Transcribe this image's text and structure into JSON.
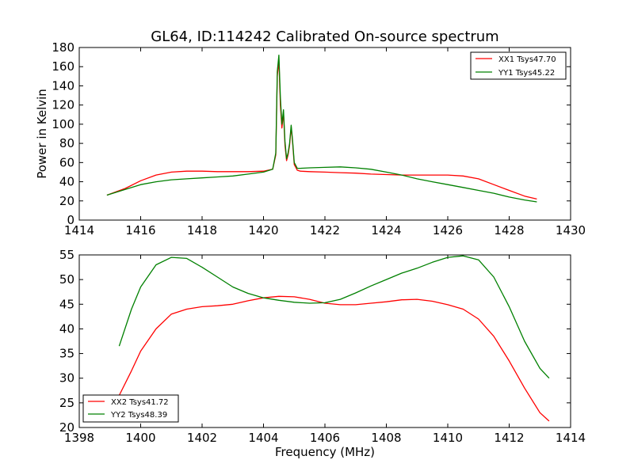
{
  "figure": {
    "title": "GL64, ID:114242 Calibrated On-source spectrum",
    "xlabel": "Frequency (MHz)"
  },
  "chart_data": [
    {
      "type": "line",
      "title": "GL64, ID:114242 Calibrated On-source spectrum",
      "xlabel": "",
      "ylabel": "Power in Kelvin",
      "xlim": [
        1414,
        1430
      ],
      "ylim": [
        0,
        180
      ],
      "x_ticks": [
        1414,
        1416,
        1418,
        1420,
        1422,
        1424,
        1426,
        1428,
        1430
      ],
      "y_ticks": [
        0,
        20,
        40,
        60,
        80,
        100,
        120,
        140,
        160,
        180
      ],
      "grid": false,
      "legend_position": "top-right",
      "series": [
        {
          "name": "XX1 Tsys47.70",
          "color": "#ff0000",
          "x": [
            1414.9,
            1415.5,
            1416.0,
            1416.5,
            1417.0,
            1417.5,
            1418.0,
            1418.5,
            1419.0,
            1419.5,
            1420.0,
            1420.3,
            1420.4,
            1420.45,
            1420.5,
            1420.55,
            1420.6,
            1420.65,
            1420.7,
            1420.75,
            1420.8,
            1420.85,
            1420.9,
            1420.95,
            1421.0,
            1421.1,
            1421.2,
            1421.5,
            1422.0,
            1422.5,
            1423.0,
            1423.5,
            1424.0,
            1424.5,
            1425.0,
            1425.5,
            1426.0,
            1426.5,
            1427.0,
            1427.5,
            1428.0,
            1428.5,
            1428.9
          ],
          "y": [
            26,
            33,
            41,
            47,
            50,
            51,
            51,
            50.5,
            50.5,
            50.5,
            51,
            53,
            68,
            150,
            167,
            120,
            96,
            112,
            78,
            62,
            68,
            78,
            97,
            80,
            58,
            52,
            51,
            50.5,
            50,
            49.5,
            49,
            48,
            47.5,
            47,
            47,
            47,
            47,
            46,
            43,
            37,
            31,
            25,
            22
          ]
        },
        {
          "name": "YY1 Tsys45.22",
          "color": "#008000",
          "x": [
            1414.9,
            1415.5,
            1416.0,
            1416.5,
            1417.0,
            1417.5,
            1418.0,
            1418.5,
            1419.0,
            1419.5,
            1420.0,
            1420.3,
            1420.4,
            1420.45,
            1420.5,
            1420.55,
            1420.6,
            1420.65,
            1420.7,
            1420.75,
            1420.8,
            1420.85,
            1420.9,
            1420.95,
            1421.0,
            1421.1,
            1421.2,
            1421.5,
            1422.0,
            1422.5,
            1423.0,
            1423.5,
            1424.0,
            1424.5,
            1425.0,
            1425.5,
            1426.0,
            1426.5,
            1427.0,
            1427.5,
            1428.0,
            1428.5,
            1428.9
          ],
          "y": [
            26,
            32,
            37,
            40,
            42,
            43,
            44,
            45,
            46,
            48,
            50,
            53,
            70,
            155,
            172,
            128,
            100,
            115,
            82,
            64,
            70,
            80,
            99,
            82,
            60,
            54,
            54,
            54.5,
            55,
            55.5,
            54.5,
            53,
            50,
            47,
            43,
            40,
            37,
            34,
            31,
            28,
            24,
            21,
            19
          ]
        }
      ]
    },
    {
      "type": "line",
      "title": "",
      "xlabel": "Frequency (MHz)",
      "ylabel": "",
      "xlim": [
        1398,
        1414
      ],
      "ylim": [
        20,
        55
      ],
      "x_ticks": [
        1398,
        1400,
        1402,
        1404,
        1406,
        1408,
        1410,
        1412,
        1414
      ],
      "y_ticks": [
        20,
        25,
        30,
        35,
        40,
        45,
        50,
        55
      ],
      "grid": false,
      "legend_position": "bottom-left",
      "series": [
        {
          "name": "XX2 Tsys41.72",
          "color": "#ff0000",
          "x": [
            1399.3,
            1399.7,
            1400.0,
            1400.5,
            1401.0,
            1401.5,
            1402.0,
            1402.5,
            1403.0,
            1403.5,
            1404.0,
            1404.5,
            1405.0,
            1405.5,
            1406.0,
            1406.5,
            1407.0,
            1407.5,
            1408.0,
            1408.5,
            1409.0,
            1409.5,
            1410.0,
            1410.5,
            1411.0,
            1411.5,
            1412.0,
            1412.5,
            1413.0,
            1413.3
          ],
          "y": [
            26.5,
            31.5,
            35.5,
            40,
            43,
            44,
            44.5,
            44.7,
            45,
            45.7,
            46.3,
            46.6,
            46.5,
            46,
            45.2,
            44.9,
            44.9,
            45.2,
            45.5,
            45.9,
            46,
            45.6,
            44.9,
            44,
            42,
            38.5,
            33.5,
            28,
            23,
            21.3
          ]
        },
        {
          "name": "YY2 Tsys48.39",
          "color": "#008000",
          "x": [
            1399.3,
            1399.7,
            1400.0,
            1400.5,
            1401.0,
            1401.5,
            1402.0,
            1402.5,
            1403.0,
            1403.5,
            1404.0,
            1404.5,
            1405.0,
            1405.5,
            1406.0,
            1406.5,
            1407.0,
            1407.5,
            1408.0,
            1408.5,
            1409.0,
            1409.5,
            1410.0,
            1410.5,
            1411.0,
            1411.5,
            1412.0,
            1412.5,
            1413.0,
            1413.3
          ],
          "y": [
            36.5,
            44,
            48.5,
            53,
            54.5,
            54.3,
            52.5,
            50.5,
            48.5,
            47.2,
            46.3,
            45.8,
            45.4,
            45.2,
            45.3,
            46,
            47.3,
            48.7,
            50,
            51.3,
            52.3,
            53.5,
            54.5,
            54.8,
            54,
            50.5,
            44.5,
            37.5,
            32,
            30
          ]
        }
      ]
    }
  ]
}
